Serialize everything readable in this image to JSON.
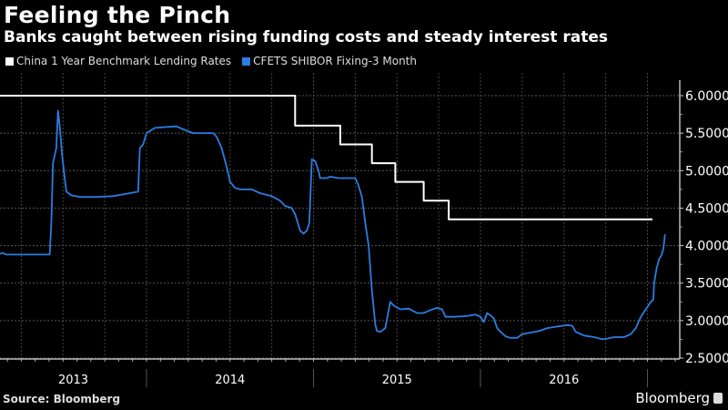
{
  "header": {
    "title": "Feeling the Pinch",
    "subtitle": "Banks caught between rising funding costs and steady interest rates"
  },
  "footer": {
    "source": "Source: Bloomberg",
    "brand": "Bloomberg"
  },
  "chart_data": {
    "type": "line",
    "title": "Feeling the Pinch",
    "subtitle": "Banks caught between rising funding costs and steady interest rates",
    "xlabel": "",
    "ylabel": "",
    "x_unit": "year (decimal)",
    "xlim": [
      2013.12,
      2017.12
    ],
    "ylim": [
      2.5,
      6.0
    ],
    "y_ticks": [
      "6.0000",
      "5.5000",
      "5.0000",
      "4.5000",
      "4.0000",
      "3.5000",
      "3.0000",
      "2.5000"
    ],
    "x_tick_labels": [
      "2013",
      "2014",
      "2015",
      "2016"
    ],
    "grid": true,
    "y_axis_side": "right",
    "legend_position": "top-left",
    "series": [
      {
        "name": "China 1 Year Benchmark Lending Rates",
        "color": "#ffffff",
        "step": true,
        "points": [
          [
            2013.12,
            6.0
          ],
          [
            2014.89,
            6.0
          ],
          [
            2014.89,
            5.6
          ],
          [
            2015.16,
            5.6
          ],
          [
            2015.16,
            5.35
          ],
          [
            2015.35,
            5.35
          ],
          [
            2015.35,
            5.1
          ],
          [
            2015.49,
            5.1
          ],
          [
            2015.49,
            4.85
          ],
          [
            2015.66,
            4.85
          ],
          [
            2015.66,
            4.6
          ],
          [
            2015.81,
            4.6
          ],
          [
            2015.81,
            4.35
          ],
          [
            2017.03,
            4.35
          ]
        ]
      },
      {
        "name": "CFETS SHIBOR Fixing-3 Month",
        "color": "#2a7de1",
        "step": false,
        "points": [
          [
            2013.12,
            3.89
          ],
          [
            2013.14,
            3.9
          ],
          [
            2013.16,
            3.88
          ],
          [
            2013.3,
            3.88
          ],
          [
            2013.42,
            3.88
          ],
          [
            2013.43,
            4.3
          ],
          [
            2013.44,
            5.1
          ],
          [
            2013.46,
            5.3
          ],
          [
            2013.47,
            5.8
          ],
          [
            2013.48,
            5.6
          ],
          [
            2013.495,
            5.2
          ],
          [
            2013.51,
            4.9
          ],
          [
            2013.52,
            4.72
          ],
          [
            2013.55,
            4.67
          ],
          [
            2013.6,
            4.65
          ],
          [
            2013.7,
            4.65
          ],
          [
            2013.8,
            4.66
          ],
          [
            2013.9,
            4.7
          ],
          [
            2013.95,
            4.72
          ],
          [
            2013.96,
            5.3
          ],
          [
            2013.98,
            5.35
          ],
          [
            2014.0,
            5.5
          ],
          [
            2014.05,
            5.57
          ],
          [
            2014.1,
            5.58
          ],
          [
            2014.18,
            5.59
          ],
          [
            2014.22,
            5.55
          ],
          [
            2014.28,
            5.5
          ],
          [
            2014.4,
            5.5
          ],
          [
            2014.42,
            5.45
          ],
          [
            2014.45,
            5.3
          ],
          [
            2014.48,
            5.05
          ],
          [
            2014.5,
            4.85
          ],
          [
            2014.53,
            4.77
          ],
          [
            2014.56,
            4.75
          ],
          [
            2014.63,
            4.75
          ],
          [
            2014.68,
            4.7
          ],
          [
            2014.75,
            4.66
          ],
          [
            2014.8,
            4.6
          ],
          [
            2014.83,
            4.53
          ],
          [
            2014.87,
            4.5
          ],
          [
            2014.89,
            4.42
          ],
          [
            2014.92,
            4.2
          ],
          [
            2014.94,
            4.16
          ],
          [
            2014.96,
            4.2
          ],
          [
            2014.975,
            4.3
          ],
          [
            2014.99,
            5.15
          ],
          [
            2015.01,
            5.13
          ],
          [
            2015.03,
            5.0
          ],
          [
            2015.04,
            4.9
          ],
          [
            2015.08,
            4.9
          ],
          [
            2015.1,
            4.92
          ],
          [
            2015.15,
            4.9
          ],
          [
            2015.25,
            4.9
          ],
          [
            2015.27,
            4.8
          ],
          [
            2015.29,
            4.65
          ],
          [
            2015.31,
            4.3
          ],
          [
            2015.33,
            4.0
          ],
          [
            2015.35,
            3.4
          ],
          [
            2015.37,
            2.95
          ],
          [
            2015.38,
            2.86
          ],
          [
            2015.4,
            2.85
          ],
          [
            2015.43,
            2.9
          ],
          [
            2015.46,
            3.25
          ],
          [
            2015.48,
            3.2
          ],
          [
            2015.52,
            3.15
          ],
          [
            2015.57,
            3.16
          ],
          [
            2015.62,
            3.1
          ],
          [
            2015.66,
            3.1
          ],
          [
            2015.7,
            3.14
          ],
          [
            2015.74,
            3.17
          ],
          [
            2015.77,
            3.15
          ],
          [
            2015.79,
            3.05
          ],
          [
            2015.84,
            3.05
          ],
          [
            2015.92,
            3.06
          ],
          [
            2015.97,
            3.08
          ],
          [
            2016.0,
            3.05
          ],
          [
            2016.02,
            2.98
          ],
          [
            2016.04,
            3.1
          ],
          [
            2016.06,
            3.07
          ],
          [
            2016.08,
            3.03
          ],
          [
            2016.1,
            2.9
          ],
          [
            2016.12,
            2.85
          ],
          [
            2016.15,
            2.79
          ],
          [
            2016.18,
            2.77
          ],
          [
            2016.22,
            2.77
          ],
          [
            2016.25,
            2.82
          ],
          [
            2016.3,
            2.84
          ],
          [
            2016.35,
            2.86
          ],
          [
            2016.4,
            2.9
          ],
          [
            2016.46,
            2.92
          ],
          [
            2016.52,
            2.94
          ],
          [
            2016.55,
            2.93
          ],
          [
            2016.57,
            2.85
          ],
          [
            2016.62,
            2.8
          ],
          [
            2016.68,
            2.78
          ],
          [
            2016.73,
            2.75
          ],
          [
            2016.76,
            2.76
          ],
          [
            2016.8,
            2.78
          ],
          [
            2016.86,
            2.78
          ],
          [
            2016.9,
            2.82
          ],
          [
            2016.93,
            2.9
          ],
          [
            2016.96,
            3.05
          ],
          [
            2016.99,
            3.15
          ],
          [
            2017.02,
            3.25
          ],
          [
            2017.035,
            3.28
          ],
          [
            2017.04,
            3.5
          ],
          [
            2017.055,
            3.7
          ],
          [
            2017.07,
            3.82
          ],
          [
            2017.085,
            3.88
          ],
          [
            2017.095,
            3.95
          ],
          [
            2017.105,
            4.15
          ]
        ]
      }
    ]
  }
}
